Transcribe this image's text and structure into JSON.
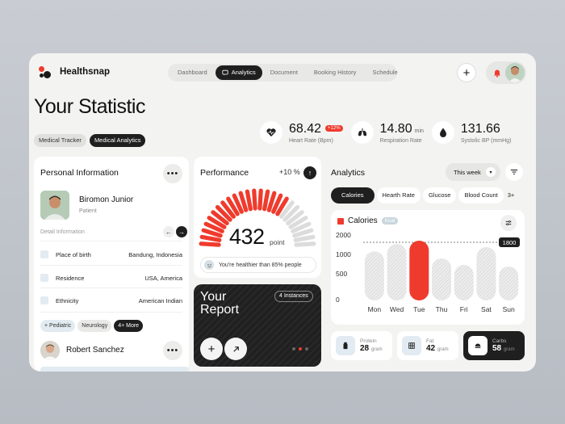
{
  "app": {
    "name": "Healthsnap"
  },
  "nav": {
    "tabs": [
      "Dashboard",
      "Analytics",
      "Document",
      "Booking History",
      "Schedule"
    ],
    "active_tab": "Analytics",
    "add_label": "+"
  },
  "page": {
    "title": "Your Statistic"
  },
  "chips": [
    "Medical Tracker",
    "Medical Analytics"
  ],
  "stats": [
    {
      "icon": "heart-rate-icon",
      "value": "68.42",
      "unit": "",
      "badge": "+12%",
      "label": "Heart Rate (Bpm)"
    },
    {
      "icon": "lungs-icon",
      "value": "14.80",
      "unit": "min",
      "badge": "",
      "label": "Respiration Rate"
    },
    {
      "icon": "blood-drop-icon",
      "value": "131.66",
      "unit": "",
      "badge": "",
      "label": "Systolic BP (mmHg)"
    }
  ],
  "personal": {
    "title": "Personal Information",
    "name": "Biromon Junior",
    "role": "Patient",
    "detail_label": "Detail Information",
    "rows": [
      {
        "key": "Place of birth",
        "value": "Bandung, Indonesia"
      },
      {
        "key": "Residence",
        "value": "USA, America"
      },
      {
        "key": "Ethnicity",
        "value": "American Indian"
      }
    ],
    "tags": [
      "+ Pediatric",
      "Neurology",
      "4+ More"
    ],
    "second_name": "Robert Sanchez"
  },
  "performance": {
    "title": "Performance",
    "change": "+10 %",
    "value": "432",
    "unit": "point",
    "note": "You're healthier than 85% people",
    "gauge_fraction": 0.68
  },
  "report": {
    "title_line1": "Your",
    "title_line2": "Report",
    "badge": "4 Instances"
  },
  "analytics": {
    "title": "Analytics",
    "period": "This week",
    "tabs": [
      "Calories",
      "Hearth Rate",
      "Glucose",
      "Blood Count",
      "3+"
    ],
    "active_tab": "Calories",
    "chart_title": "Calories",
    "chart_unit": "Kcal",
    "macros": [
      {
        "icon": "protein-icon",
        "label": "Protein",
        "value": "28",
        "unit": "gram"
      },
      {
        "icon": "fat-icon",
        "label": "Fat",
        "value": "42",
        "unit": "gram"
      },
      {
        "icon": "carbs-icon",
        "label": "Carbs",
        "value": "58",
        "unit": "gram"
      }
    ]
  },
  "chart_data": {
    "type": "bar",
    "title": "Calories",
    "categories": [
      "Mon",
      "Wed",
      "Tue",
      "Thu",
      "Fri",
      "Sat",
      "Sun"
    ],
    "values": [
      1520,
      1750,
      1850,
      1300,
      1100,
      1650,
      1050
    ],
    "yticks": [
      "2000",
      "1000",
      "500",
      "0"
    ],
    "ylim": [
      0,
      2000
    ],
    "highlight_index": 2,
    "reference_line": 1800,
    "reference_label": "1800",
    "colors": {
      "highlight": "#ef3b2d",
      "bar": "#e2e2e2"
    }
  }
}
